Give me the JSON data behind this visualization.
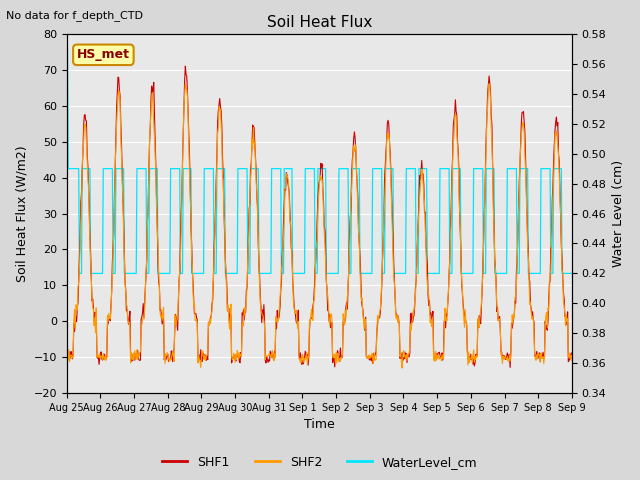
{
  "title": "Soil Heat Flux",
  "top_left_text": "No data for f_depth_CTD",
  "box_label": "HS_met",
  "xlabel": "Time",
  "ylabel_left": "Soil Heat Flux (W/m2)",
  "ylabel_right": "Water Level (cm)",
  "ylim_left": [
    -20,
    80
  ],
  "ylim_right": [
    0.34,
    0.58
  ],
  "shf1_color": "#cc0000",
  "shf2_color": "#ff9900",
  "water_color": "#00e5ff",
  "fig_bg_color": "#d8d8d8",
  "plot_bg_color": "#e8e8e8",
  "grid_color": "#ffffff",
  "tick_label_fontsize": 8,
  "axis_label_fontsize": 9,
  "title_fontsize": 11,
  "legend_fontsize": 9
}
